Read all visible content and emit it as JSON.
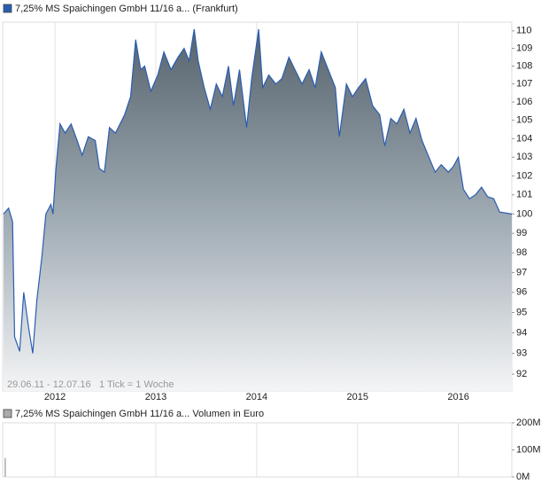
{
  "chart_data": [
    {
      "type": "area",
      "series": [
        {
          "name": "7,25% MS Spaichingen GmbH 11/16 a... (Frankfurt)",
          "color": "#2a5db0",
          "values": [
            100,
            100.3,
            99.6,
            93.8,
            93.1,
            96,
            94.2,
            93,
            95.6,
            97.8,
            100,
            100.5,
            100,
            102.4,
            104.8,
            104.3,
            104.8,
            103.9,
            103.1,
            104.1,
            103.9,
            102.4,
            102.2,
            104.6,
            104.3,
            105.3,
            106.3,
            109.5,
            107.8,
            108,
            106.6,
            107.5,
            108.8,
            107.8,
            108.5,
            109,
            108.3,
            110.1,
            108.3,
            106.8,
            105.6,
            107,
            106.3,
            108,
            105.8,
            107.8,
            104.6,
            107.3,
            110.1,
            106.8,
            107.5,
            107,
            107.3,
            108.5,
            107.8,
            107,
            107.8,
            106.8,
            108.8,
            107.8,
            106.8,
            104.1,
            107,
            106.3,
            106.8,
            107.3,
            105.8,
            105.3,
            103.6,
            105.1,
            104.8,
            105.6,
            104.3,
            105.1,
            103.9,
            103.1,
            102.2,
            102.6,
            102.2,
            102.5,
            103,
            101.3,
            100.8,
            101,
            101.4,
            100.9,
            100.8,
            100.1,
            100
          ]
        }
      ],
      "x": [
        2011.49,
        2011.54,
        2011.58,
        2011.6,
        2011.65,
        2011.69,
        2011.74,
        2011.78,
        2011.82,
        2011.87,
        2011.91,
        2011.96,
        2011.98,
        2012.01,
        2012.05,
        2012.1,
        2012.16,
        2012.22,
        2012.27,
        2012.33,
        2012.4,
        2012.44,
        2012.49,
        2012.54,
        2012.6,
        2012.69,
        2012.75,
        2012.8,
        2012.85,
        2012.89,
        2012.95,
        2013.02,
        2013.08,
        2013.15,
        2013.22,
        2013.28,
        2013.33,
        2013.38,
        2013.42,
        2013.48,
        2013.54,
        2013.6,
        2013.66,
        2013.72,
        2013.77,
        2013.83,
        2013.9,
        2013.95,
        2014.02,
        2014.06,
        2014.12,
        2014.19,
        2014.25,
        2014.32,
        2014.38,
        2014.45,
        2014.52,
        2014.58,
        2014.64,
        2014.71,
        2014.78,
        2014.82,
        2014.89,
        2014.95,
        2015.01,
        2015.08,
        2015.15,
        2015.22,
        2015.27,
        2015.33,
        2015.39,
        2015.46,
        2015.52,
        2015.58,
        2015.64,
        2015.7,
        2015.77,
        2015.83,
        2015.9,
        2015.95,
        2016,
        2016.05,
        2016.11,
        2016.17,
        2016.23,
        2016.29,
        2016.35,
        2016.41,
        2016.53
      ],
      "xlim": [
        2011.49,
        2016.53
      ],
      "xticks": [
        2012,
        2013,
        2014,
        2015,
        2016
      ],
      "ylim": [
        91.2,
        110.5
      ],
      "yticks": [
        92,
        93,
        94,
        95,
        96,
        97,
        98,
        99,
        100,
        101,
        102,
        103,
        104,
        105,
        106,
        107,
        108,
        109,
        110
      ],
      "log_y": true,
      "grid": "x",
      "annotations": [
        "29.06.11 - 12.07.16",
        "1 Tick = 1 Woche"
      ]
    },
    {
      "type": "bar",
      "series": [
        {
          "name": "7,25% MS Spaichingen GmbH 11/16 a... Volumen in Euro",
          "color": "#aaaaaa",
          "values": [
            70000000
          ]
        }
      ],
      "x": [
        2011.5
      ],
      "xlim": [
        2011.49,
        2016.53
      ],
      "xticks": [
        2012,
        2013,
        2014,
        2015,
        2016
      ],
      "ylim": [
        0,
        200000000
      ],
      "yticks": [
        {
          "value": 0,
          "label": "0M"
        },
        {
          "value": 100000000,
          "label": "100M"
        },
        {
          "value": 200000000,
          "label": "200M"
        }
      ],
      "log_y": false,
      "grid": "x"
    }
  ]
}
